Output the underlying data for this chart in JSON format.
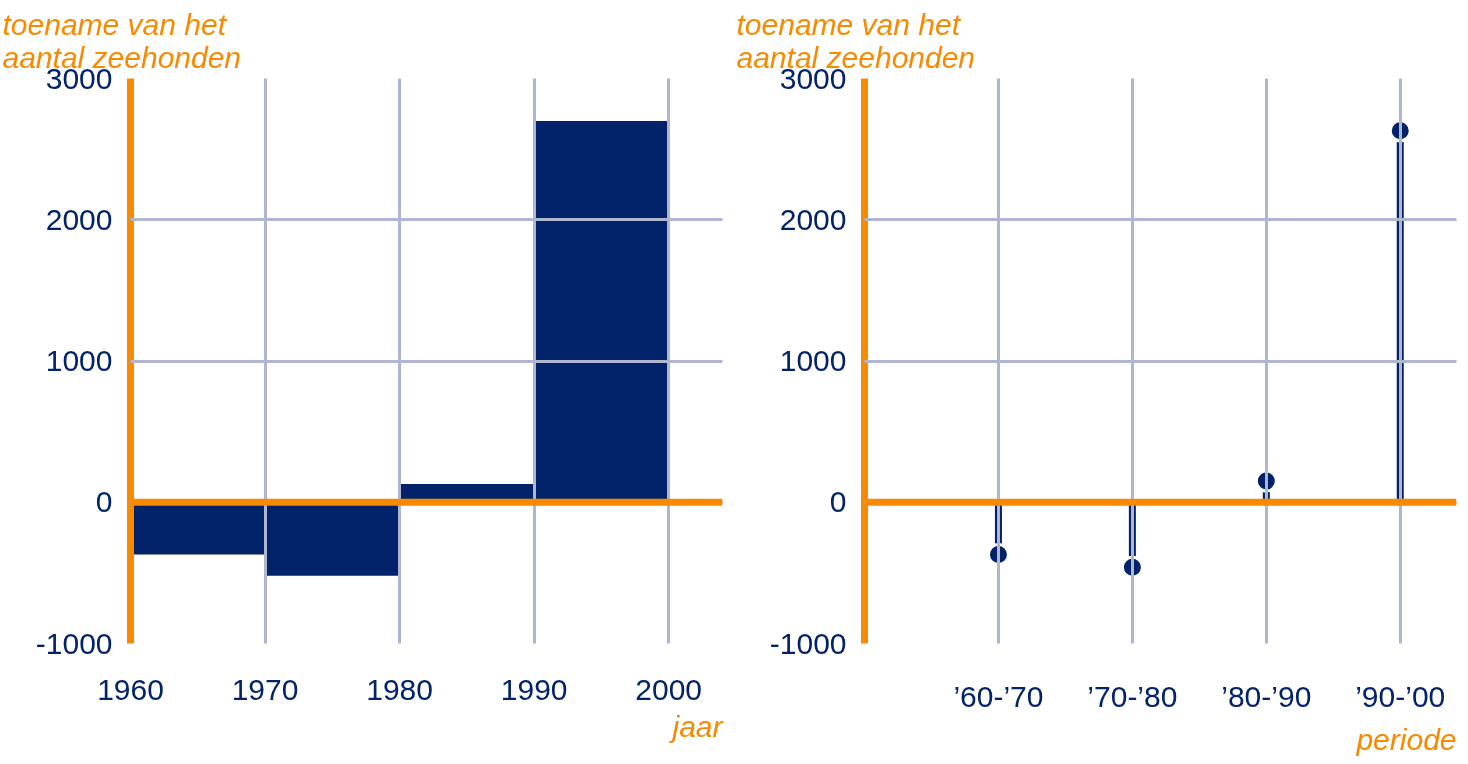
{
  "chart_data": [
    {
      "type": "histogram",
      "ylabel": "toename van het\naantal zeehonden",
      "xlabel": "jaar",
      "bins": [
        1960,
        1970,
        1980,
        1990,
        2000
      ],
      "values": [
        -370,
        -520,
        130,
        2700
      ],
      "color": "#022369",
      "xlim": [
        1960,
        2004
      ],
      "xticks": [
        1960,
        1970,
        1980,
        1990,
        2000
      ],
      "ylim": [
        -1000,
        3000
      ],
      "yticks": [
        -1000,
        0,
        1000,
        2000,
        3000
      ],
      "grid": true,
      "ref_lines": [
        {
          "axis": "y",
          "value": 0,
          "color": "#f78a00"
        }
      ]
    },
    {
      "type": "lollipop",
      "ylabel": "toename van het\naantal zeehonden",
      "xlabel": "periode",
      "categories": [
        "’60-’70",
        "’70-’80",
        "’80-’90",
        "’90-’00"
      ],
      "values": [
        -370,
        -460,
        150,
        2630
      ],
      "color": "#022369",
      "marker": "circle",
      "ylim": [
        -1000,
        3000
      ],
      "yticks": [
        -1000,
        0,
        1000,
        2000,
        3000
      ],
      "grid": true,
      "ref_lines": [
        {
          "axis": "y",
          "value": 0,
          "color": "#f78a00"
        }
      ]
    }
  ]
}
